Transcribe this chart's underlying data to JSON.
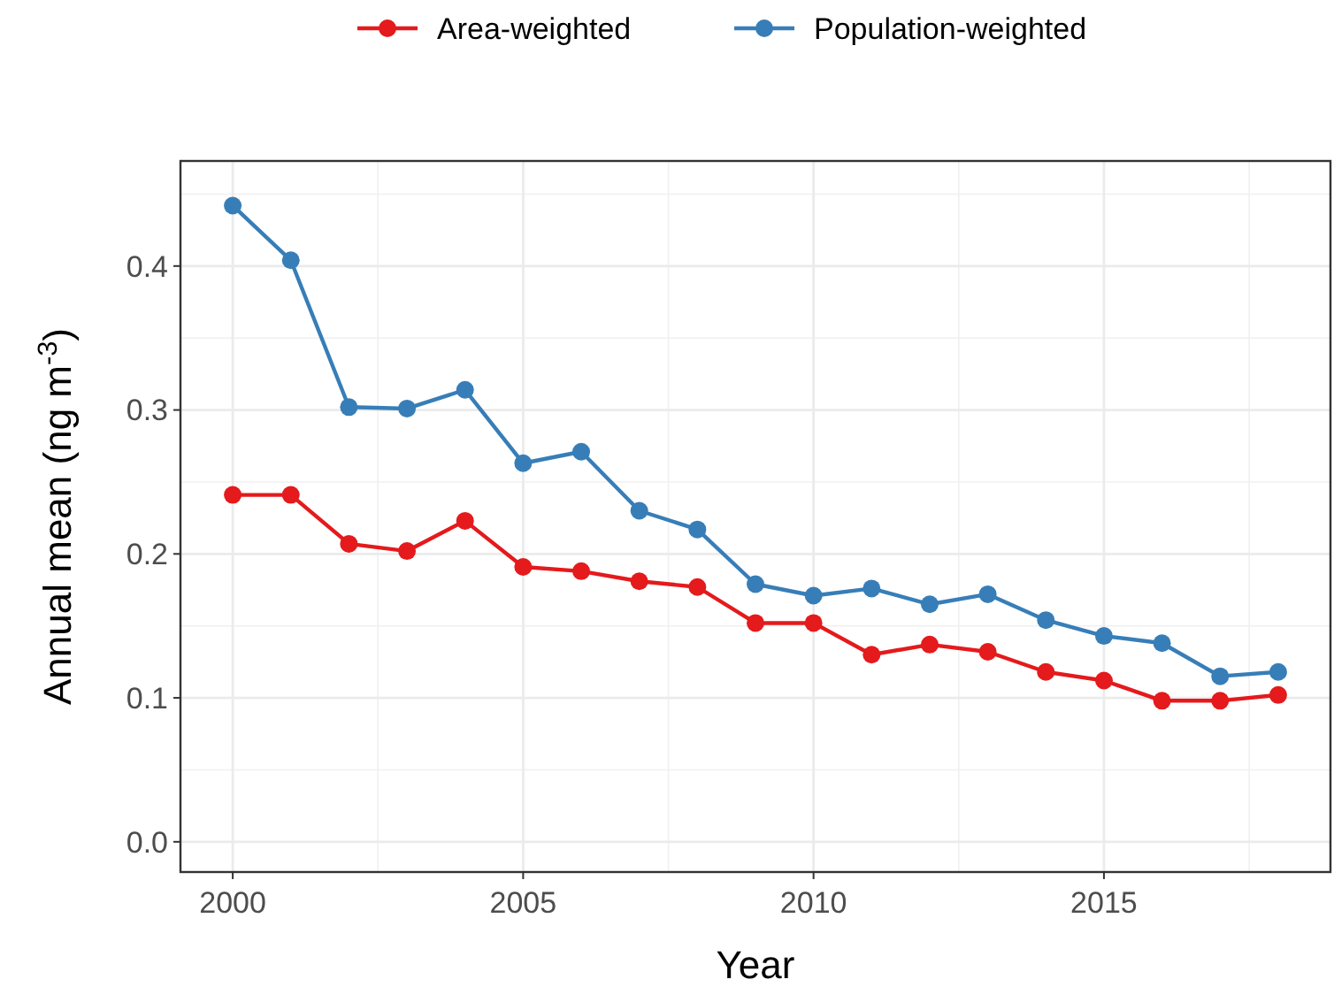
{
  "chart_data": {
    "type": "line",
    "xlabel": "Year",
    "ylabel": "Annual mean (ng m$^{-3}$)",
    "x": [
      2000,
      2001,
      2002,
      2003,
      2004,
      2005,
      2006,
      2007,
      2008,
      2009,
      2010,
      2011,
      2012,
      2013,
      2014,
      2015,
      2016,
      2017,
      2018
    ],
    "series": [
      {
        "name": "Area-weighted",
        "color": "#e41a1c",
        "values": [
          0.241,
          0.241,
          0.207,
          0.202,
          0.223,
          0.191,
          0.188,
          0.181,
          0.177,
          0.152,
          0.152,
          0.13,
          0.137,
          0.132,
          0.118,
          0.112,
          0.098,
          0.098,
          0.102
        ]
      },
      {
        "name": "Population-weighted",
        "color": "#377eb8",
        "values": [
          0.442,
          0.404,
          0.302,
          0.301,
          0.314,
          0.263,
          0.271,
          0.23,
          0.217,
          0.179,
          0.171,
          0.176,
          0.165,
          0.172,
          0.154,
          0.143,
          0.138,
          0.115,
          0.118
        ]
      }
    ],
    "xlim": [
      1999.1,
      2018.9
    ],
    "ylim": [
      -0.021,
      0.473
    ],
    "xticks": [
      2000,
      2005,
      2010,
      2015
    ],
    "yticks": [
      {
        "value": 0,
        "label": "0.0"
      },
      {
        "value": 0.1,
        "label": "0.1"
      },
      {
        "value": 0.2,
        "label": "0.2"
      },
      {
        "value": 0.3,
        "label": "0.3"
      },
      {
        "value": 0.4,
        "label": "0.4"
      }
    ],
    "grid": true,
    "legend": "top",
    "marker": "circle",
    "line_style": "solid"
  }
}
